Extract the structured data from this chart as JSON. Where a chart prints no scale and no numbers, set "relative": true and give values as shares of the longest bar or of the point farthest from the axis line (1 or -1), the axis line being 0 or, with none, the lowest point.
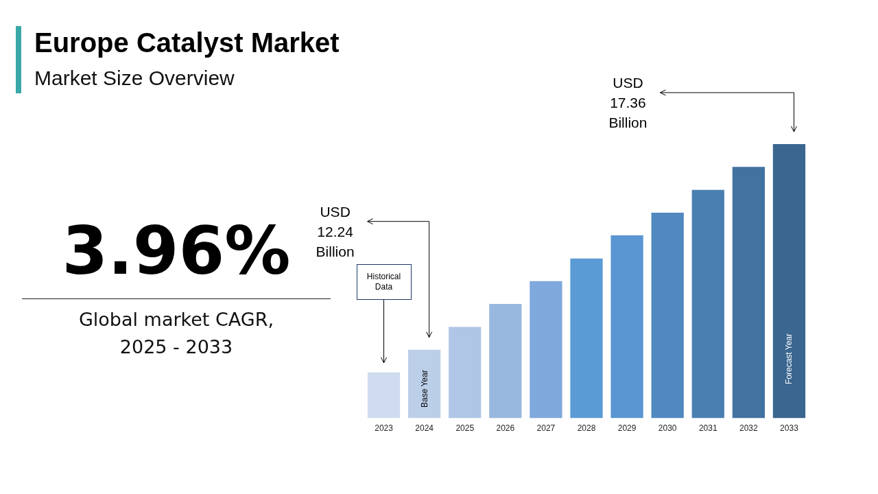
{
  "chart_data": {
    "type": "bar",
    "title": "Europe Catalyst Market",
    "subtitle": "Market Size Overview",
    "categories": [
      "2023",
      "2024",
      "2025",
      "2026",
      "2027",
      "2028",
      "2029",
      "2030",
      "2031",
      "2032",
      "2033"
    ],
    "values": [
      0.167,
      0.25,
      0.333,
      0.417,
      0.5,
      0.583,
      0.667,
      0.75,
      0.833,
      0.917,
      1
    ],
    "colors": [
      "#cfdcef",
      "#bccfe9",
      "#afc6e6",
      "#98b8e0",
      "#7fa8dc",
      "#5b9bd5",
      "#5a96d1",
      "#5089c0",
      "#4a7fb2",
      "#4272a0",
      "#3a668f"
    ],
    "relative": true,
    "legend": false,
    "grid": false,
    "annotations": [
      "3.96%",
      "Global market CAGR, 2025 - 2033",
      "Historical Data",
      "Base Year",
      "Forecast Year",
      "USD 12.24 Billion",
      "USD 17.36 Billion"
    ]
  }
}
